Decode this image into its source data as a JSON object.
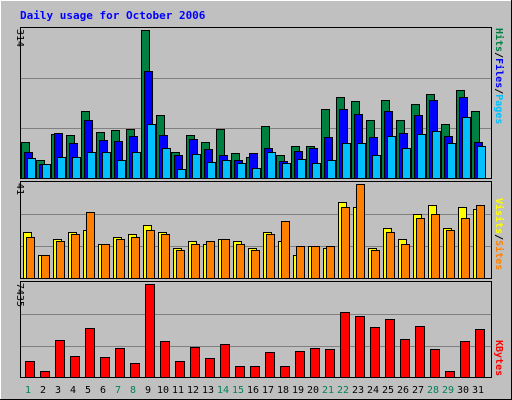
{
  "title": "Daily usage for October 2006",
  "colors": {
    "background": "#c0c0c0",
    "title": "#0000ff",
    "hits": "#008040",
    "files": "#0000ff",
    "pages": "#00c0ff",
    "visits": "#ffff00",
    "sites": "#ff8000",
    "kbytes": "#ff0000",
    "weekday_label": "#000000",
    "weekend_label": "#00805c"
  },
  "legend": {
    "top": {
      "pages": "Pages",
      "files": "Files",
      "hits": "Hits",
      "separator": "/"
    },
    "middle": {
      "sites": "Sites",
      "visits": "Visits",
      "separator": "/"
    },
    "bottom": {
      "kbytes": "KBytes"
    }
  },
  "axis_max_labels": {
    "top": "314",
    "middle": "41",
    "bottom": "7435"
  },
  "chart_data": [
    {
      "type": "bar",
      "panel": "hits-files-pages",
      "categories": [
        "1",
        "2",
        "3",
        "4",
        "5",
        "6",
        "7",
        "8",
        "9",
        "10",
        "11",
        "12",
        "13",
        "14",
        "15",
        "16",
        "17",
        "18",
        "19",
        "20",
        "21",
        "22",
        "23",
        "24",
        "25",
        "26",
        "27",
        "28",
        "29",
        "30",
        "31"
      ],
      "ylim": [
        0,
        314
      ],
      "series": [
        {
          "name": "Hits",
          "values": [
            76,
            38,
            94,
            92,
            143,
            98,
            101,
            104,
            314,
            134,
            56,
            92,
            76,
            104,
            53,
            44,
            111,
            49,
            67,
            67,
            147,
            171,
            163,
            122,
            165,
            122,
            158,
            179,
            114,
            187,
            143
          ]
        },
        {
          "name": "Files",
          "values": [
            56,
            29,
            96,
            74,
            124,
            81,
            78,
            89,
            228,
            92,
            49,
            83,
            62,
            49,
            38,
            54,
            63,
            36,
            58,
            63,
            87,
            147,
            136,
            87,
            143,
            96,
            134,
            165,
            89,
            171,
            76
          ]
        },
        {
          "name": "Pages",
          "values": [
            43,
            29,
            45,
            45,
            56,
            56,
            38,
            56,
            114,
            63,
            20,
            51,
            33,
            38,
            31,
            22,
            56,
            31,
            40,
            31,
            38,
            74,
            74,
            49,
            89,
            63,
            94,
            100,
            74,
            129,
            67
          ]
        }
      ]
    },
    {
      "type": "bar",
      "panel": "visits-sites",
      "categories": [
        "1",
        "2",
        "3",
        "4",
        "5",
        "6",
        "7",
        "8",
        "9",
        "10",
        "11",
        "12",
        "13",
        "14",
        "15",
        "16",
        "17",
        "18",
        "19",
        "20",
        "21",
        "22",
        "23",
        "24",
        "25",
        "26",
        "27",
        "28",
        "29",
        "30",
        "31"
      ],
      "ylim": [
        0,
        41
      ],
      "series": [
        {
          "name": "Visits",
          "values": [
            20,
            10,
            17,
            20,
            21,
            15,
            18,
            19,
            23,
            20,
            13,
            16,
            15,
            17,
            16,
            13,
            20,
            16,
            10,
            14,
            13,
            33,
            31,
            13,
            22,
            17,
            28,
            32,
            22,
            31,
            30
          ]
        },
        {
          "name": "Sites",
          "values": [
            18,
            10,
            16,
            19,
            29,
            15,
            17,
            18,
            21,
            19,
            12,
            15,
            16,
            17,
            15,
            12,
            19,
            25,
            14,
            14,
            14,
            31,
            41,
            12,
            20,
            15,
            26,
            28,
            21,
            26,
            32
          ]
        }
      ]
    },
    {
      "type": "bar",
      "panel": "kbytes",
      "categories": [
        "1",
        "2",
        "3",
        "4",
        "5",
        "6",
        "7",
        "8",
        "9",
        "10",
        "11",
        "12",
        "13",
        "14",
        "15",
        "16",
        "17",
        "18",
        "19",
        "20",
        "21",
        "22",
        "23",
        "24",
        "25",
        "26",
        "27",
        "28",
        "29",
        "30",
        "31"
      ],
      "ylim": [
        0,
        7435
      ],
      "series": [
        {
          "name": "KBytes",
          "values": [
            1300,
            450,
            2950,
            1700,
            3950,
            1600,
            2350,
            1150,
            7435,
            2850,
            1250,
            2400,
            1550,
            2650,
            900,
            900,
            2000,
            850,
            2050,
            2300,
            2250,
            5200,
            4900,
            4000,
            4600,
            3000,
            4050,
            2250,
            500,
            2900,
            3800
          ]
        }
      ]
    }
  ],
  "weekend_days": [
    1,
    7,
    8,
    14,
    15,
    21,
    22,
    28,
    29
  ]
}
